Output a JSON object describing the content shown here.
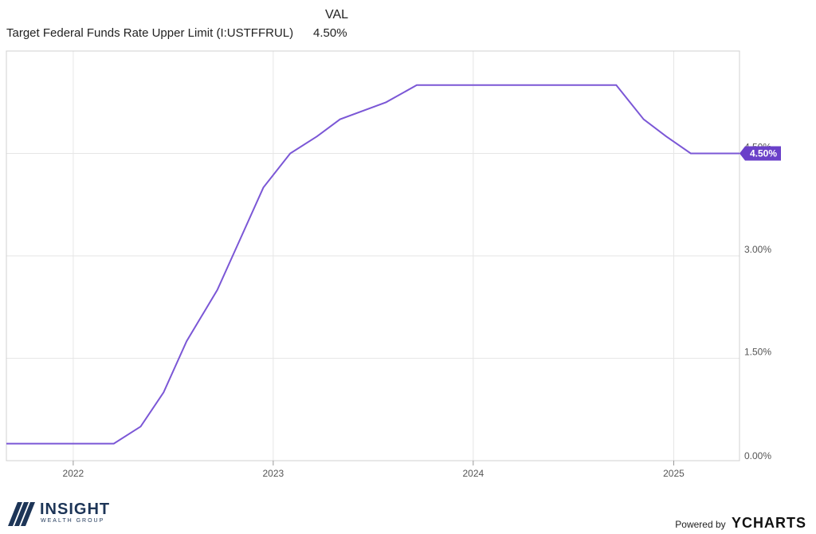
{
  "legend": {
    "column_header": "VAL",
    "series_name": "Target Federal Funds Rate Upper Limit (I:USTFFRUL)",
    "series_value": "4.50%"
  },
  "colors": {
    "line": "#7b57d6",
    "badge": "#6a40c9",
    "grid": "#e6e6e6",
    "frame": "#d0d0d0"
  },
  "chart_data": {
    "type": "line",
    "title": "",
    "xlabel": "",
    "ylabel": "",
    "x_ticks": [
      "2022",
      "2023",
      "2024",
      "2025"
    ],
    "y_ticks": [
      "0.00%",
      "1.50%",
      "3.00%",
      "4.50%"
    ],
    "ylim": [
      0,
      6
    ],
    "xlim": [
      "2021-09-01",
      "2025-05-01"
    ],
    "grid": true,
    "end_label": "4.50%",
    "series": [
      {
        "name": "Target Federal Funds Rate Upper Limit (I:USTFFRUL)",
        "points": [
          [
            "2021-09-01",
            0.25
          ],
          [
            "2022-03-16",
            0.25
          ],
          [
            "2022-05-04",
            0.5
          ],
          [
            "2022-06-15",
            1.0
          ],
          [
            "2022-07-27",
            1.75
          ],
          [
            "2022-09-21",
            2.5
          ],
          [
            "2022-11-02",
            3.25
          ],
          [
            "2022-12-14",
            4.0
          ],
          [
            "2023-02-01",
            4.5
          ],
          [
            "2023-03-22",
            4.75
          ],
          [
            "2023-05-03",
            5.0
          ],
          [
            "2023-07-26",
            5.25
          ],
          [
            "2023-09-20",
            5.5
          ],
          [
            "2024-09-18",
            5.5
          ],
          [
            "2024-11-07",
            5.0
          ],
          [
            "2024-12-18",
            4.75
          ],
          [
            "2025-02-01",
            4.5
          ],
          [
            "2025-05-01",
            4.5
          ]
        ]
      }
    ]
  },
  "footer": {
    "logo_text": "INSIGHT",
    "logo_subtext": "WEALTH GROUP",
    "powered_by": "Powered by",
    "brand": "YCHARTS"
  }
}
